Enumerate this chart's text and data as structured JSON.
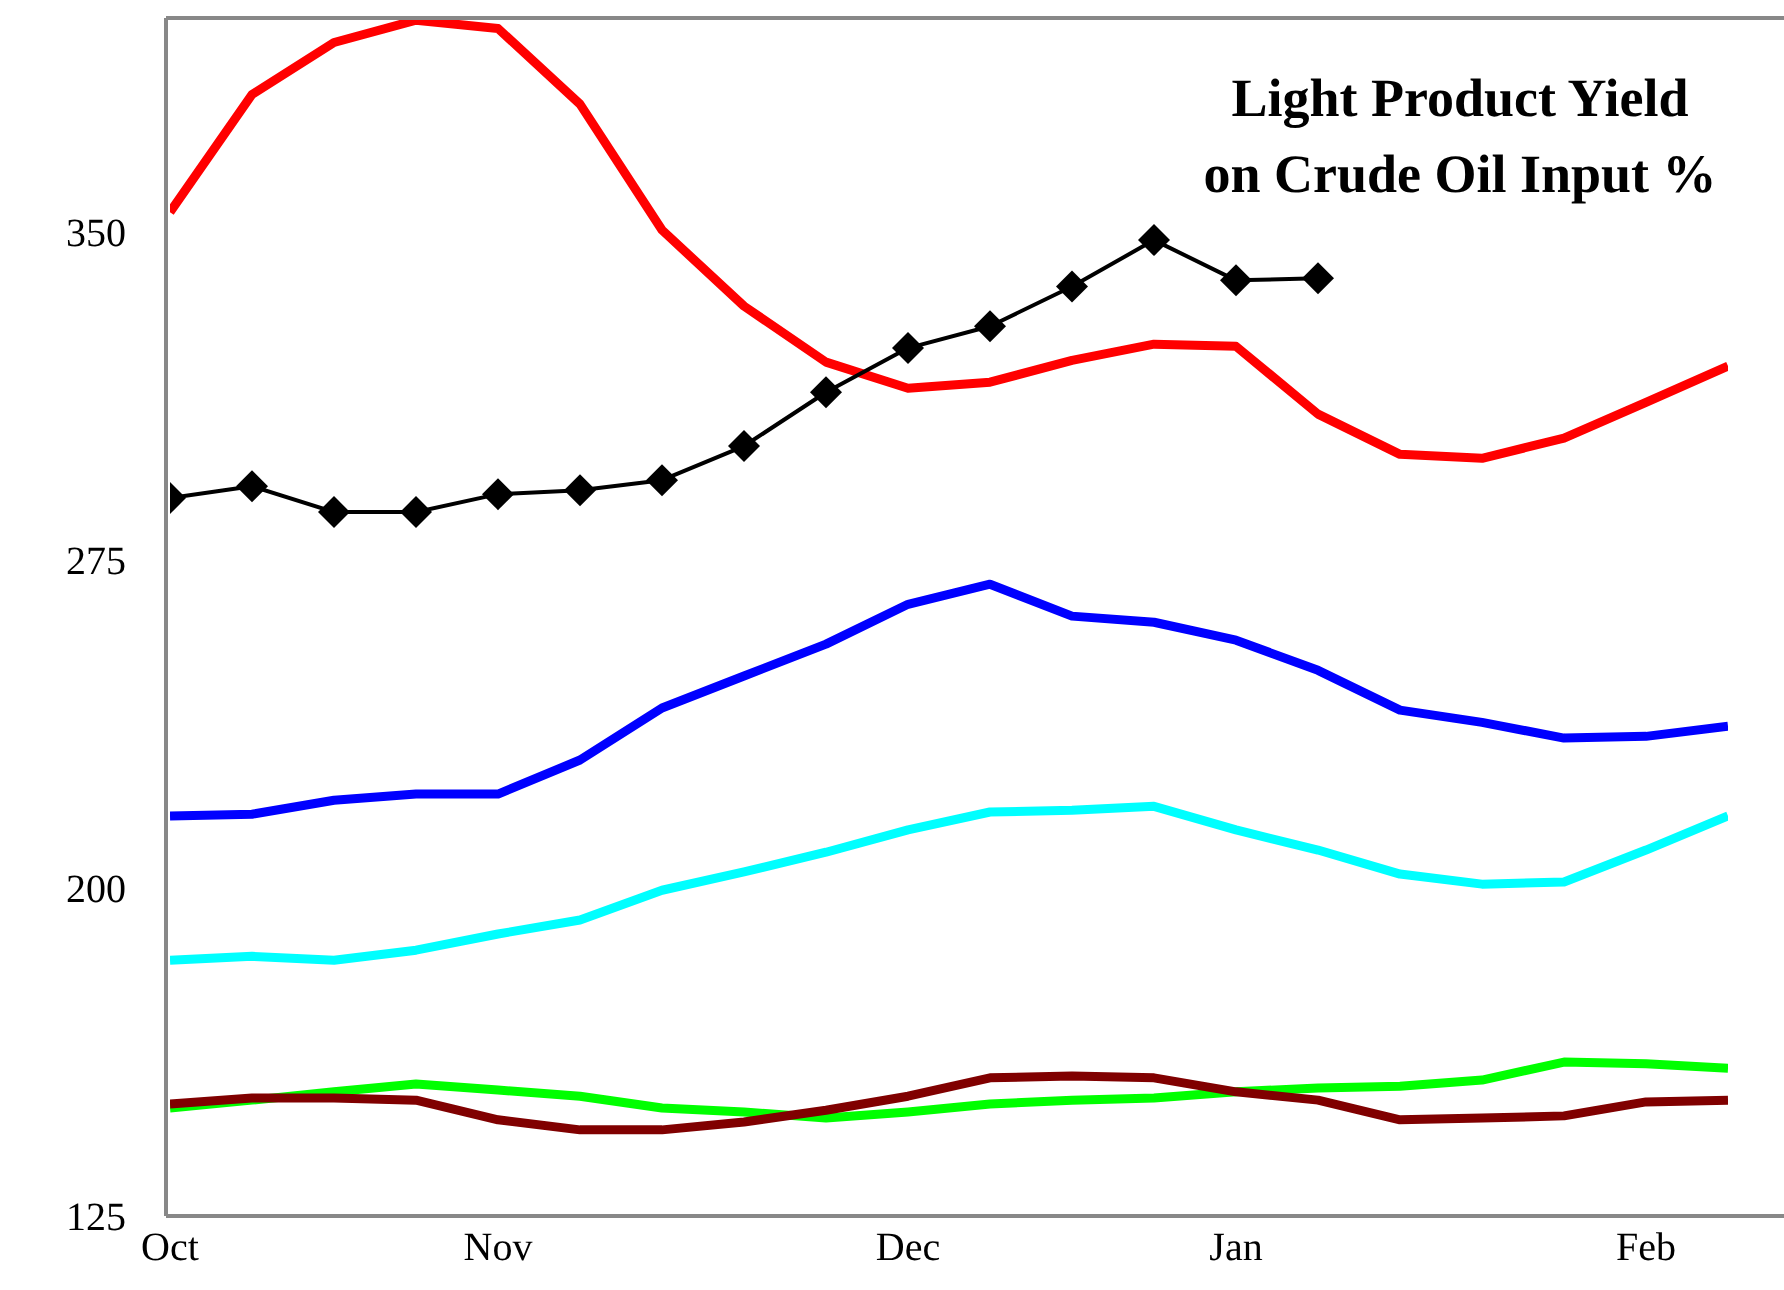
{
  "chart_data": {
    "type": "line",
    "title": "Light Product Yield\non Crude Oil Input %",
    "categories": [
      "Oct",
      null,
      null,
      null,
      "Nov",
      null,
      null,
      null,
      null,
      "Dec",
      null,
      null,
      null,
      "Jan",
      null,
      null,
      null,
      null,
      "Feb",
      null
    ],
    "ylim": [
      125,
      399
    ],
    "yticks": [
      125,
      200,
      275,
      350
    ],
    "grid": false,
    "legend": false,
    "line_style": "solid",
    "series": [
      {
        "color": "#ff0000",
        "marker": "none",
        "values": [
          354.6,
          381.5,
          393.4,
          398.5,
          396.6,
          379.3,
          350.5,
          333.1,
          320.3,
          314.3,
          315.7,
          320.7,
          324.4,
          323.9,
          308.4,
          299.2,
          298.3,
          302.9,
          311.1,
          319.4
        ]
      },
      {
        "color": "#0000ff",
        "marker": "none",
        "values": [
          216.5,
          216.9,
          220.1,
          221.5,
          221.5,
          229.3,
          241.2,
          248.5,
          255.8,
          264.9,
          269.5,
          262.2,
          260.8,
          256.7,
          249.8,
          240.7,
          237.9,
          234.3,
          234.7,
          237.0
        ]
      },
      {
        "color": "#00ffff",
        "marker": "none",
        "values": [
          183.5,
          184.4,
          183.5,
          185.8,
          189.5,
          192.7,
          199.5,
          203.7,
          208.2,
          213.3,
          217.4,
          217.8,
          218.7,
          213.3,
          208.7,
          203.2,
          200.9,
          201.4,
          208.7,
          216.5
        ]
      },
      {
        "color": "#00ff00",
        "marker": "none",
        "values": [
          149.7,
          151.5,
          153.4,
          155.2,
          153.8,
          152.4,
          149.7,
          148.8,
          147.4,
          148.8,
          150.6,
          151.5,
          152.0,
          153.4,
          154.3,
          154.7,
          156.1,
          160.2,
          159.8,
          158.8
        ]
      },
      {
        "color": "#800000",
        "marker": "none",
        "values": [
          150.6,
          152.0,
          152.0,
          151.5,
          147.0,
          144.7,
          144.7,
          146.5,
          149.2,
          152.4,
          156.6,
          157.0,
          156.6,
          153.4,
          151.5,
          147.0,
          147.4,
          147.9,
          151.1,
          151.5
        ]
      },
      {
        "color": "#000000",
        "marker": "diamond",
        "values": [
          289.2,
          291.9,
          286.0,
          286.0,
          290.1,
          291.0,
          293.3,
          301.1,
          313.4,
          323.5,
          328.5,
          337.6,
          348.2,
          339.0,
          339.5,
          null,
          null,
          null,
          null,
          null
        ]
      }
    ]
  }
}
